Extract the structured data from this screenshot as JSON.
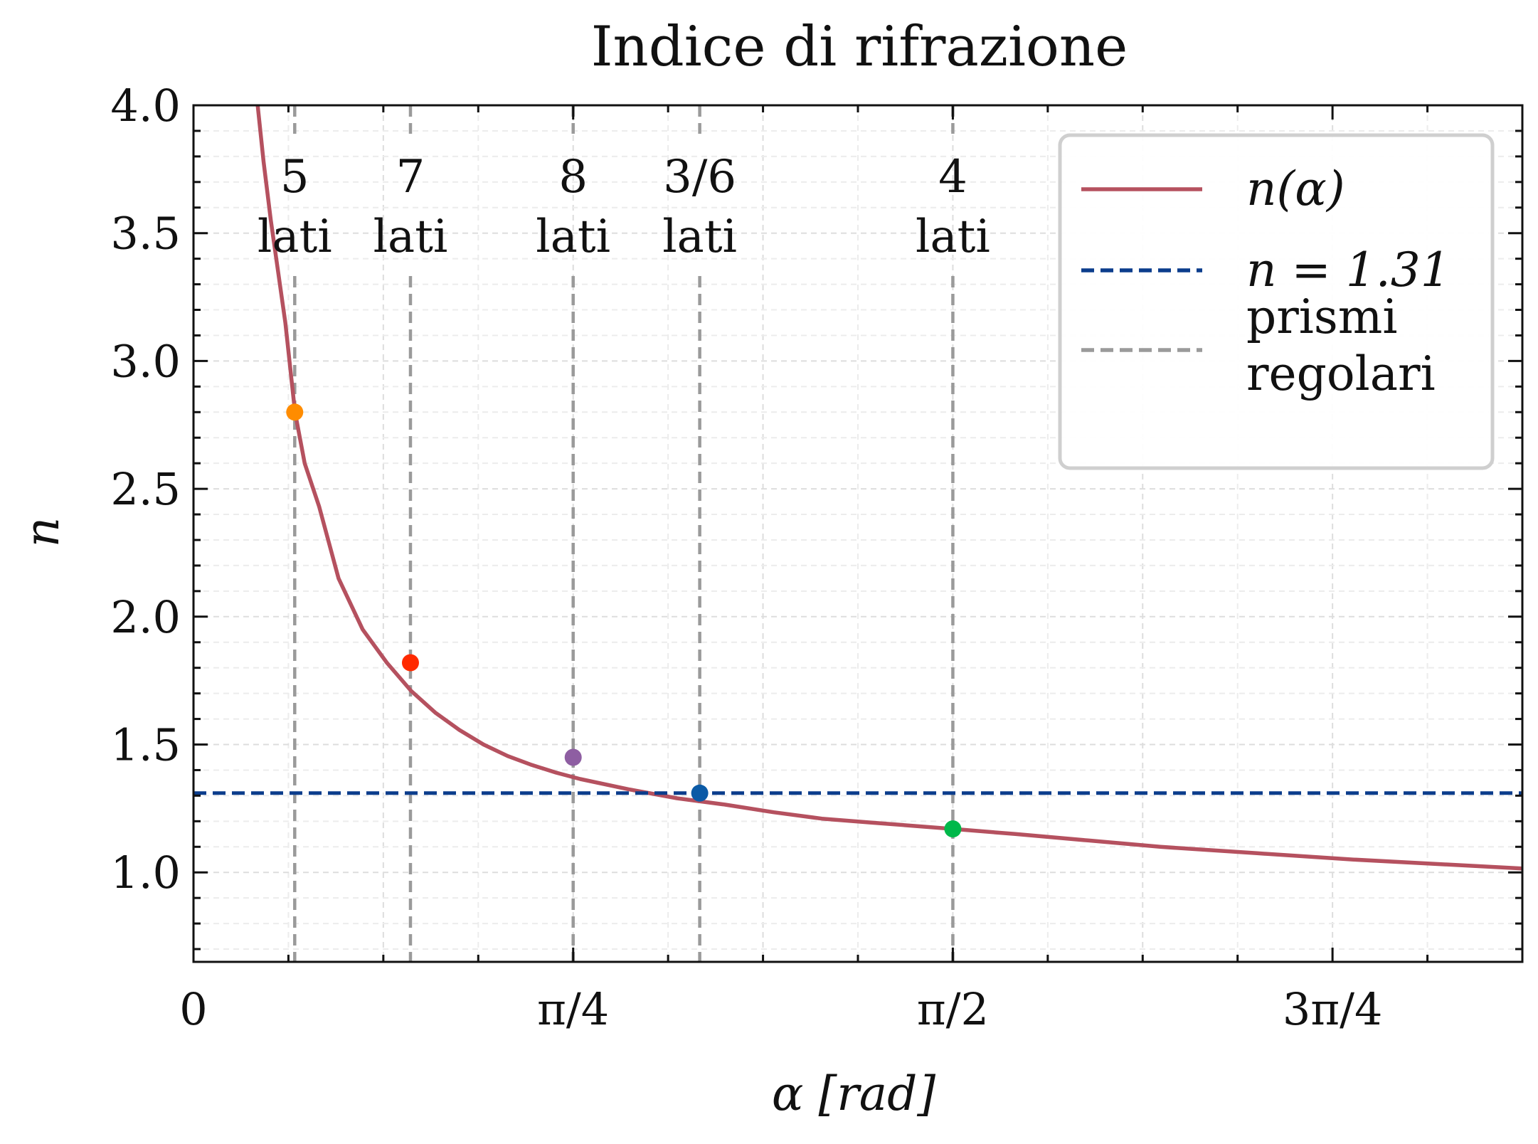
{
  "chart_data": {
    "type": "line",
    "title": "Indice di rifrazione",
    "xlabel": "α [rad]",
    "ylabel": "n",
    "xlim": [
      0,
      2.7489
    ],
    "ylim": [
      0.65,
      4.0
    ],
    "grid": true,
    "x_ticks": [
      {
        "value": 0,
        "label": "0"
      },
      {
        "value": 0.7854,
        "label": "π/4"
      },
      {
        "value": 1.5708,
        "label": "π/2"
      },
      {
        "value": 2.3562,
        "label": "3π/4"
      }
    ],
    "y_ticks": [
      {
        "value": 1.0,
        "label": "1.0"
      },
      {
        "value": 1.5,
        "label": "1.5"
      },
      {
        "value": 2.0,
        "label": "2.0"
      },
      {
        "value": 2.5,
        "label": "2.5"
      },
      {
        "value": 3.0,
        "label": "3.0"
      },
      {
        "value": 3.5,
        "label": "3.5"
      },
      {
        "value": 4.0,
        "label": "4.0"
      }
    ],
    "series": [
      {
        "name": "n(α)",
        "color": "#b5515f",
        "style": "solid",
        "x": [
          0.13,
          0.145,
          0.16,
          0.175,
          0.19,
          0.21,
          0.23,
          0.26,
          0.3,
          0.35,
          0.4,
          0.45,
          0.5,
          0.55,
          0.6,
          0.65,
          0.7,
          0.75,
          0.8,
          0.9,
          1.0,
          1.1,
          1.2,
          1.3,
          1.4,
          1.5708,
          1.7,
          1.85,
          2.0,
          2.2,
          2.4,
          2.6,
          2.7489
        ],
        "y": [
          4.05,
          3.78,
          3.55,
          3.35,
          3.15,
          2.8,
          2.6,
          2.43,
          2.15,
          1.95,
          1.82,
          1.71,
          1.625,
          1.557,
          1.5,
          1.455,
          1.42,
          1.39,
          1.365,
          1.325,
          1.29,
          1.265,
          1.235,
          1.21,
          1.195,
          1.17,
          1.15,
          1.125,
          1.1,
          1.075,
          1.05,
          1.03,
          1.015
        ]
      },
      {
        "name": "n = 1.31",
        "color": "#0b3d8c",
        "style": "dashed",
        "y_constant": 1.31
      }
    ],
    "reference_lines": {
      "legend_label": "prismi regolari",
      "color": "#9a9a9a",
      "style": "dashed",
      "lines": [
        {
          "x": 0.2094,
          "label_top": "5",
          "label_bottom": "lati",
          "point_y": 2.8,
          "point_color": "#ff8c00"
        },
        {
          "x": 0.4488,
          "label_top": "7",
          "label_bottom": "lati",
          "point_y": 1.82,
          "point_color": "#ff2a00"
        },
        {
          "x": 0.7854,
          "label_top": "8",
          "label_bottom": "lati",
          "point_y": 1.45,
          "point_color": "#8e5ea2"
        },
        {
          "x": 1.0472,
          "label_top": "3/6",
          "label_bottom": "lati",
          "point_y": 1.31,
          "point_color": "#0b5aa6"
        },
        {
          "x": 1.5708,
          "label_top": "4",
          "label_bottom": "lati",
          "point_y": 1.17,
          "point_color": "#00b84a"
        }
      ]
    },
    "legend": {
      "position": "top-right",
      "entries": [
        {
          "label": "n(α)",
          "color": "#b5515f",
          "style": "solid"
        },
        {
          "label": "n = 1.31",
          "color": "#0b3d8c",
          "style": "dashed"
        },
        {
          "label_lines": [
            "prismi",
            "regolari"
          ],
          "color": "#9a9a9a",
          "style": "dashed"
        }
      ]
    }
  }
}
